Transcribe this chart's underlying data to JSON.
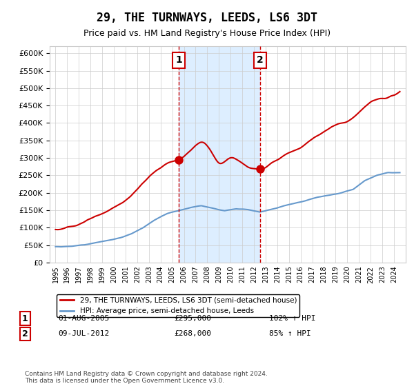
{
  "title": "29, THE TURNWAYS, LEEDS, LS6 3DT",
  "subtitle": "Price paid vs. HM Land Registry's House Price Index (HPI)",
  "legend_line1": "29, THE TURNWAYS, LEEDS, LS6 3DT (semi-detached house)",
  "legend_line2": "HPI: Average price, semi-detached house, Leeds",
  "purchase1_label": "1",
  "purchase1_date": "01-AUG-2005",
  "purchase1_price": "£295,000",
  "purchase1_pct": "102% ↑ HPI",
  "purchase1_year": 2005.58,
  "purchase1_value": 295000,
  "purchase2_label": "2",
  "purchase2_date": "09-JUL-2012",
  "purchase2_price": "£268,000",
  "purchase2_pct": "85% ↑ HPI",
  "purchase2_year": 2012.52,
  "purchase2_value": 268000,
  "footer": "Contains HM Land Registry data © Crown copyright and database right 2024.\nThis data is licensed under the Open Government Licence v3.0.",
  "ylim": [
    0,
    600000
  ],
  "yticks": [
    0,
    50000,
    100000,
    150000,
    200000,
    250000,
    300000,
    350000,
    400000,
    450000,
    500000,
    550000,
    600000
  ],
  "red_color": "#cc0000",
  "blue_color": "#6699cc",
  "shade_color": "#ddeeff",
  "marker_color": "#cc0000",
  "marker2_color": "#cc0000",
  "vline_color": "#cc0000",
  "background_color": "#ffffff",
  "grid_color": "#cccccc"
}
